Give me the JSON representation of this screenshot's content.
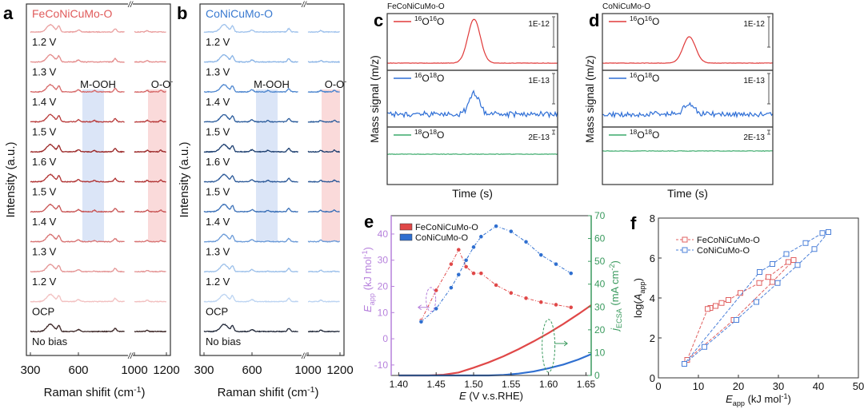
{
  "chart_data": [
    {
      "panel": "a",
      "type": "line",
      "title": "FeCoNiCuMo-O",
      "title_color": "#e05a5a",
      "ylabel": "Intensity (a.u.)",
      "xlabel": {
        "main": "Raman shifit (cm",
        "sup": "-1",
        "end": ")"
      },
      "xticks": [
        "300",
        "600",
        "1000",
        "1200"
      ],
      "xaxis_break": "//",
      "traces": [
        "1.2 V",
        "1.3 V",
        "1.4 V",
        "1.5 V",
        "1.6 V",
        "1.5 V",
        "1.4 V",
        "1.3 V",
        "1.2 V",
        "OCP",
        "No bias"
      ],
      "colors": [
        "#eaa0a0",
        "#e48c8c",
        "#d66868",
        "#b83a3a",
        "#9a2626",
        "#b03232",
        "#c85454",
        "#d87474",
        "#e49494",
        "#f2c0c0",
        "#3a2424"
      ],
      "bands": [
        {
          "label": "M-OOH",
          "sup": "",
          "range": [
            625,
            760
          ],
          "color": "#dbe5f7"
        },
        {
          "label": "O-O",
          "sup": "-",
          "range": [
            1085,
            1200
          ],
          "color": "#fadada"
        }
      ]
    },
    {
      "panel": "b",
      "type": "line",
      "title": "CoNiCuMo-O",
      "title_color": "#3a7ad0",
      "ylabel": "Intensity (a.u.)",
      "xlabel": {
        "main": "Raman shifit (cm",
        "sup": "-1",
        "end": ")"
      },
      "xticks": [
        "300",
        "600",
        "1000",
        "1200"
      ],
      "xaxis_break": "//",
      "traces": [
        "1.2 V",
        "1.3 V",
        "1.4 V",
        "1.5 V",
        "1.6 V",
        "1.5 V",
        "1.4 V",
        "1.3 V",
        "1.2 V",
        "OCP",
        "No bias"
      ],
      "colors": [
        "#9fc2ec",
        "#8ab4e6",
        "#4d86cf",
        "#2b5c9c",
        "#1d3f70",
        "#2a5898",
        "#3a70b8",
        "#6a9ad8",
        "#9cc0ea",
        "#bcd4f2",
        "#22293a"
      ],
      "bands": [
        {
          "label": "M-OOH",
          "sup": "",
          "range": [
            625,
            760
          ],
          "color": "#dbe5f7"
        },
        {
          "label": "O-O",
          "sup": "-",
          "range": [
            1085,
            1200
          ],
          "color": "#fadada"
        }
      ]
    },
    {
      "panel": "c",
      "type": "line",
      "title": "FeCoNiCuMo-O",
      "ylabel": "Mass signal (m/z)",
      "xlabel": "Time (s)",
      "series": [
        {
          "iso": [
            "16",
            "O",
            "16",
            "O"
          ],
          "scale": "1E-12",
          "color": "#e03a3a",
          "peak_rel": 1.0
        },
        {
          "iso": [
            "16",
            "O",
            "18",
            "O"
          ],
          "scale": "1E-13",
          "color": "#2f6fd6",
          "peak_rel": 1.0
        },
        {
          "iso": [
            "18",
            "O",
            "18",
            "O"
          ],
          "scale": "2E-13",
          "color": "#3aaa6a",
          "peak_rel": 0.0
        }
      ]
    },
    {
      "panel": "d",
      "type": "line",
      "title": "CoNiCuMo-O",
      "ylabel": "Mass signal (m/z)",
      "xlabel": "Time (s)",
      "series": [
        {
          "iso": [
            "16",
            "O",
            "16",
            "O"
          ],
          "scale": "1E-12",
          "color": "#e03a3a",
          "peak_rel": 0.6
        },
        {
          "iso": [
            "16",
            "O",
            "18",
            "O"
          ],
          "scale": "1E-13",
          "color": "#2f6fd6",
          "peak_rel": 0.55
        },
        {
          "iso": [
            "18",
            "O",
            "18",
            "O"
          ],
          "scale": "2E-13",
          "color": "#3aaa6a",
          "peak_rel": 0.0
        }
      ]
    },
    {
      "panel": "e",
      "type": "line",
      "xlabel": {
        "italic": "E",
        "rest": " (V v.s.RHE)"
      },
      "ylabel_left": {
        "italic": "E",
        "sub": "app",
        "rest": " (kJ mol",
        "sup": "-1",
        "end": ")"
      },
      "ylabel_right": {
        "italic": "j",
        "sub": "ECSA",
        "rest": " (mA cm",
        "sup": "-2",
        "end": ")"
      },
      "xlim": [
        1.39,
        1.657
      ],
      "ylim_left": [
        -14,
        47
      ],
      "ylim_right": [
        0,
        70
      ],
      "xticks": [
        "1.40",
        "1.45",
        "1.50",
        "1.55",
        "1.60",
        "1.65"
      ],
      "yticks_left": [
        "-10",
        "0",
        "10",
        "20",
        "30",
        "40"
      ],
      "yticks_right": [
        "0",
        "10",
        "20",
        "30",
        "40",
        "50",
        "60",
        "70"
      ],
      "left_color": "#b680dc",
      "right_color": "#3a9a5e",
      "legend": [
        "FeCoNiCuMo-O",
        "CoNiCuMo-O"
      ],
      "series": [
        {
          "name": "FeCoNiCuMo-O",
          "color": "#e04848",
          "x": [
            1.43,
            1.45,
            1.47,
            1.48,
            1.49,
            1.5,
            1.51,
            1.53,
            1.55,
            1.57,
            1.59,
            1.61,
            1.63
          ],
          "Eapp": [
            7,
            18.5,
            28.5,
            34,
            27.5,
            25,
            25,
            20.5,
            17.5,
            15.5,
            14,
            13,
            12
          ],
          "j_E": [
            1.4,
            1.44,
            1.46,
            1.48,
            1.5,
            1.52,
            1.54,
            1.56,
            1.58,
            1.6,
            1.62,
            1.64,
            1.657
          ],
          "j": [
            0,
            0,
            0.3,
            1.3,
            3.4,
            5.7,
            8.4,
            11.5,
            14.9,
            18.6,
            22.6,
            26.9,
            30.8
          ]
        },
        {
          "name": "CoNiCuMo-O",
          "color": "#2f6fd0",
          "x": [
            1.43,
            1.45,
            1.47,
            1.48,
            1.49,
            1.5,
            1.51,
            1.53,
            1.55,
            1.57,
            1.59,
            1.61,
            1.63
          ],
          "Eapp": [
            6.5,
            11.5,
            19.5,
            24.5,
            30,
            35,
            39,
            43,
            41,
            37,
            32,
            28.5,
            25
          ],
          "j_E": [
            1.4,
            1.52,
            1.54,
            1.56,
            1.58,
            1.6,
            1.62,
            1.64,
            1.657
          ],
          "j": [
            0,
            0,
            0.2,
            0.8,
            1.7,
            3.1,
            4.8,
            7.0,
            9.3
          ]
        }
      ]
    },
    {
      "panel": "f",
      "type": "scatter",
      "xlabel": {
        "italic": "E",
        "sub": "app",
        "rest": " (kJ mol",
        "sup": "-1",
        "end": ")"
      },
      "ylabel": {
        "pre": "log(",
        "italic": "A",
        "sub": "app",
        "end": ")"
      },
      "xlim": [
        0,
        50
      ],
      "ylim": [
        0,
        8
      ],
      "xticks": [
        "0",
        "10",
        "20",
        "30",
        "40",
        "50"
      ],
      "yticks": [
        "0",
        "2",
        "4",
        "6",
        "8"
      ],
      "legend": [
        "FeCoNiCuMo-O",
        "CoNiCuMo-O"
      ],
      "series": [
        {
          "name": "FeCoNiCuMo-O",
          "color": "#e06060",
          "points": [
            [
              7.2,
              0.9
            ],
            [
              18.8,
              2.9
            ],
            [
              28.5,
              4.8
            ],
            [
              33.8,
              5.9
            ],
            [
              32.5,
              5.8
            ],
            [
              27.5,
              5.05
            ],
            [
              25.2,
              4.75
            ],
            [
              20.5,
              4.25
            ],
            [
              17.5,
              3.9
            ],
            [
              15.8,
              3.75
            ],
            [
              14.3,
              3.6
            ],
            [
              13,
              3.5
            ],
            [
              12.3,
              3.45
            ]
          ]
        },
        {
          "name": "CoNiCuMo-O",
          "color": "#4a7fd8",
          "points": [
            [
              6.5,
              0.7
            ],
            [
              11.5,
              1.55
            ],
            [
              19.5,
              2.9
            ],
            [
              24.5,
              3.8
            ],
            [
              29.8,
              4.75
            ],
            [
              34.8,
              5.65
            ],
            [
              39,
              6.45
            ],
            [
              42.5,
              7.3
            ],
            [
              41,
              7.25
            ],
            [
              36.8,
              6.75
            ],
            [
              32,
              6.2
            ],
            [
              28.5,
              5.7
            ],
            [
              25.3,
              5.3
            ]
          ]
        }
      ]
    }
  ]
}
